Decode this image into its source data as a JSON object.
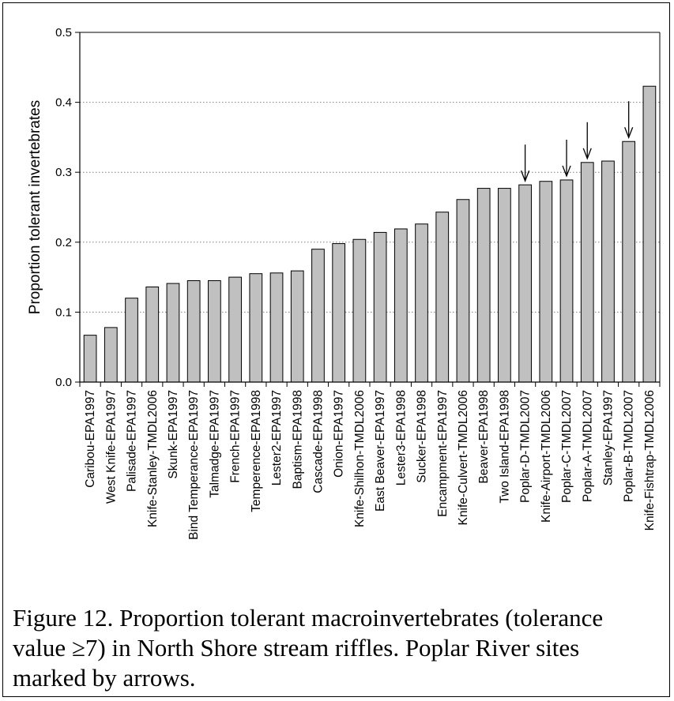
{
  "chart_data": {
    "type": "bar",
    "ylabel": "Proportion tolerant invertebrates",
    "xlabel": "",
    "ylim": [
      0,
      0.5
    ],
    "yticks": [
      "0.0",
      "0.1",
      "0.2",
      "0.3",
      "0.4",
      "0.5"
    ],
    "ytick_values": [
      0,
      0.1,
      0.2,
      0.3,
      0.4,
      0.5
    ],
    "grid": "horizontal dotted",
    "categories": [
      "Caribou-EPA1997",
      "West Knife-EPA1997",
      "Palisade-EPA1997",
      "Knife-Stanley-TMDL2006",
      "Skunk-EPA1997",
      "Bind Temperance-EPA1997",
      "Talmadge-EPA1997",
      "French-EPA1997",
      "Temperence-EPA1998",
      "Lester2-EPA1997",
      "Baptism-EPA1998",
      "Cascade-EPA1998",
      "Onion-EPA1997",
      "Knife-Shilhon-TMDL2006",
      "East Beaver-EPA1997",
      "Lester3-EPA1998",
      "Sucker-EPA1998",
      "Encampment-EPA1997",
      "Knife-Culvert-TMDL2006",
      "Beaver-EPA1998",
      "Two Island-EPA1998",
      "Poplar-D-TMDL2007",
      "Knife-Airport-TMDL2006",
      "Poplar-C-TMDL2007",
      "Poplar-A-TMDL2007",
      "Stanley-EPA1997",
      "Poplar-B-TMDL2007",
      "Knife-Fishtrap-TMDL2006"
    ],
    "values": [
      0.067,
      0.078,
      0.12,
      0.136,
      0.141,
      0.145,
      0.145,
      0.15,
      0.155,
      0.156,
      0.159,
      0.19,
      0.198,
      0.204,
      0.214,
      0.219,
      0.226,
      0.243,
      0.261,
      0.277,
      0.277,
      0.282,
      0.287,
      0.289,
      0.314,
      0.316,
      0.344,
      0.423
    ],
    "arrow_marked_categories": [
      "Poplar-D-TMDL2007",
      "Poplar-C-TMDL2007",
      "Poplar-A-TMDL2007",
      "Poplar-B-TMDL2007"
    ],
    "bar_color": "#c0c0c0",
    "bar_edge_color": "#000000",
    "grid_color": "#808080"
  },
  "caption": "Figure 12. Proportion tolerant macroinvertebrates (tolerance value ≥7) in North Shore stream riffles. Poplar River sites marked by arrows."
}
